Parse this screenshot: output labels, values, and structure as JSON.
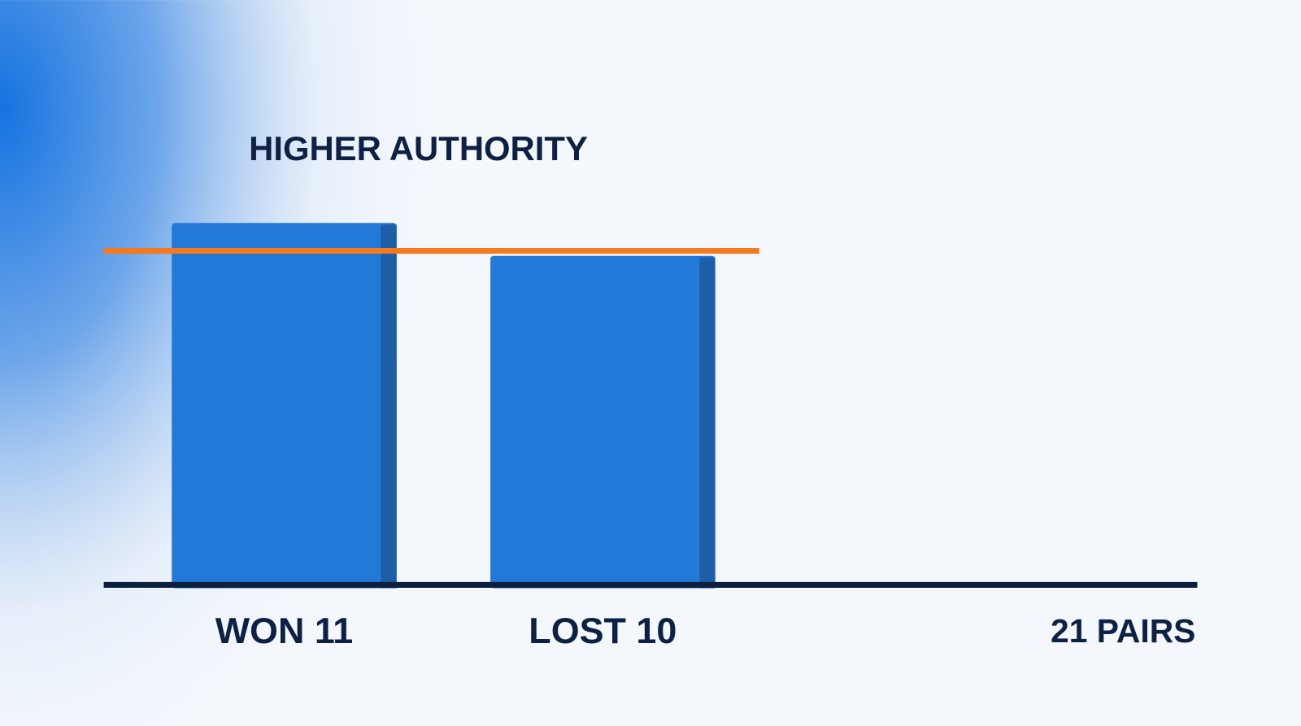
{
  "chart_data": {
    "type": "bar",
    "title": "HIGHER AUTHORITY",
    "categories": [
      "WON 11",
      "LOST 10"
    ],
    "values": [
      11,
      10
    ],
    "color": "#2379d8",
    "reference_line": 10,
    "reference_color": "#f47a20",
    "total_label": "21 PAIRS",
    "ylim": [
      0,
      12
    ]
  }
}
